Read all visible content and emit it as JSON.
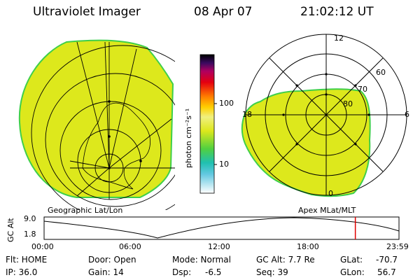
{
  "header": {
    "instrument": "Ultraviolet Imager",
    "date": "08 Apr 07",
    "time": "21:02:12 UT"
  },
  "colorbar": {
    "unit_label": "photon cm⁻²s⁻¹",
    "ticks": [
      "100",
      "10"
    ]
  },
  "left_map": {
    "caption": "Geographic Lat/Lon"
  },
  "polar_map": {
    "caption": "Apex MLat/MLT",
    "mlt_labels": [
      "12",
      "18",
      "6",
      "0"
    ],
    "lat_labels": [
      "60",
      "70",
      "80"
    ]
  },
  "altitude_plot": {
    "ylabel": "GC Alt",
    "y_ticks": [
      "9.0",
      "1.8"
    ],
    "x_ticks": [
      "00:00",
      "06:00",
      "12:00",
      "18:00",
      "23:59"
    ],
    "current_time_fraction": 0.877
  },
  "status": {
    "flt": "Flt: HOME",
    "door": "Door: Open",
    "mode": "Mode: Normal",
    "gc_alt": "GC Alt: 7.7 Re",
    "glat_label": "GLat:",
    "glat_value": "-70.7",
    "ip": "IP: 36.0",
    "gain": "Gain: 14",
    "dsp_label": "Dsp:",
    "dsp_value": "-6.5",
    "seq": "Seq: 39",
    "glon_label": "GLon:",
    "glon_value": "56.7"
  },
  "colors": {
    "image_fill": "#dde81c",
    "edge": "#3ecf4a",
    "marker": "#e00000"
  }
}
